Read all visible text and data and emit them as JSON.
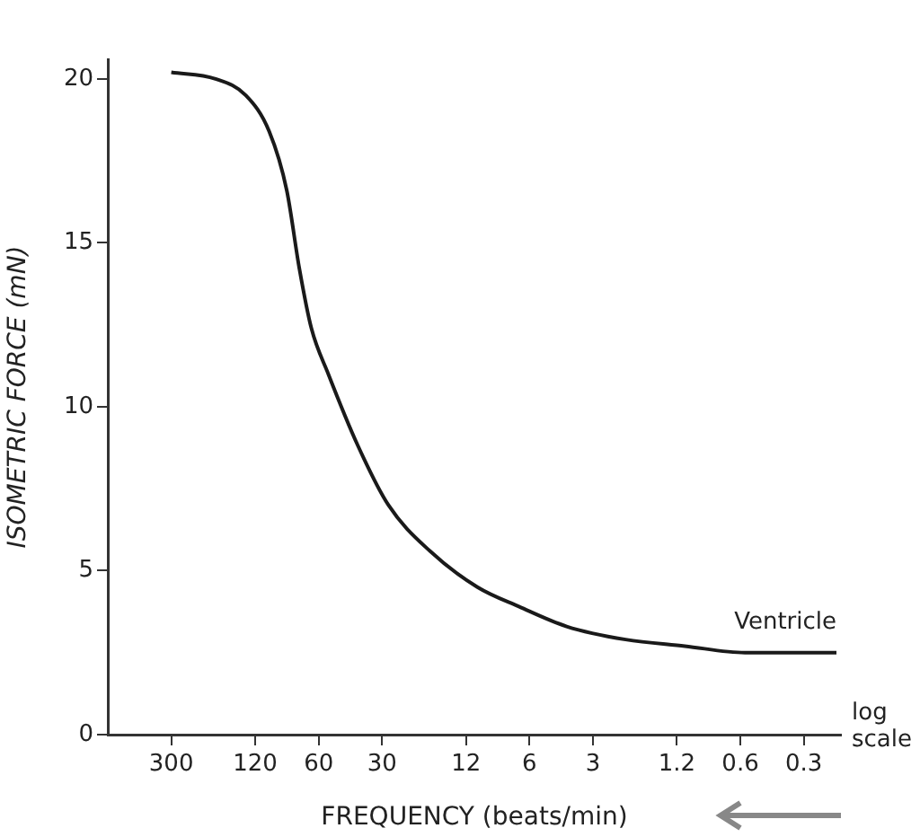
{
  "chart_data": {
    "type": "line",
    "xlabel": "FREQUENCY (beats/min)",
    "ylabel": "ISOMETRIC FORCE (mN)",
    "log": "x",
    "xlim": [
      600,
      0.2
    ],
    "xticks": [
      300,
      120,
      60,
      30,
      12,
      6,
      3,
      {
        "value": 1.2,
        "label": "1.2"
      },
      {
        "value": 0.6,
        "label": "0.6"
      },
      {
        "value": 0.3,
        "label": "0.3"
      }
    ],
    "ylim": [
      0,
      20.6
    ],
    "yticks": [
      0,
      5,
      10,
      15,
      20
    ],
    "grid": false,
    "legend": false,
    "marker": "none",
    "line_style": "solid",
    "annotations": [
      "log scale"
    ],
    "series": [
      {
        "name": "Ventricle",
        "color": "#1a1a1a",
        "x": [
          300,
          185,
          133,
          103,
          85,
          74,
          65,
          54,
          39,
          28,
          17.8,
          10.6,
          6.7,
          4.0,
          2.1,
          1.1,
          0.57,
          0.21
        ],
        "values": [
          20.2,
          20.0,
          19.5,
          18.4,
          16.6,
          14.2,
          12.4,
          11.0,
          8.8,
          7.0,
          5.6,
          4.5,
          3.9,
          3.3,
          2.9,
          2.7,
          2.5,
          2.5
        ]
      }
    ]
  }
}
